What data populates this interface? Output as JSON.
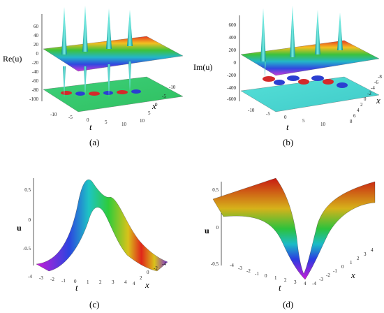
{
  "panels": {
    "a": {
      "caption": "(a)",
      "zlabel": "Re(u)",
      "xlabel": "x",
      "tlabel": "t",
      "zticks": [
        "60",
        "40",
        "20",
        "0",
        "-20",
        "-40",
        "-60",
        "-80",
        "-100"
      ],
      "tticks": [
        "-10",
        "-5",
        "0",
        "5",
        "10"
      ],
      "xticks": [
        "-10",
        "-5",
        "0",
        "5",
        "10"
      ]
    },
    "b": {
      "caption": "(b)",
      "zlabel": "Im(u)",
      "xlabel": "x",
      "tlabel": "t",
      "zticks": [
        "600",
        "400",
        "200",
        "0",
        "-200",
        "-400",
        "-600"
      ],
      "tticks": [
        "-10",
        "-5",
        "0",
        "5",
        "10"
      ],
      "xticks": [
        "-8",
        "-6",
        "-4",
        "-2",
        "0",
        "2",
        "4",
        "6",
        "8"
      ]
    },
    "c": {
      "caption": "(c)",
      "zlabel": "u",
      "xlabel": "x",
      "tlabel": "t",
      "zticks": [
        "0.5",
        "0",
        "-0.5"
      ],
      "tticks": [
        "-4",
        "-3",
        "-2",
        "-1",
        "0",
        "1",
        "2",
        "3",
        "4"
      ],
      "xticks": [
        "4",
        "2",
        "0",
        "-2",
        "-4"
      ]
    },
    "d": {
      "caption": "(d)",
      "zlabel": "u",
      "xlabel": "x",
      "tlabel": "t",
      "zticks": [
        "0.5",
        "0",
        "-0.5"
      ],
      "tticks": [
        "-4",
        "-3",
        "-2",
        "-1",
        "0",
        "1",
        "2",
        "3",
        "4"
      ],
      "xticks": [
        "-4",
        "-3",
        "-2",
        "-1",
        "0",
        "1",
        "2",
        "3",
        "4"
      ]
    }
  }
}
